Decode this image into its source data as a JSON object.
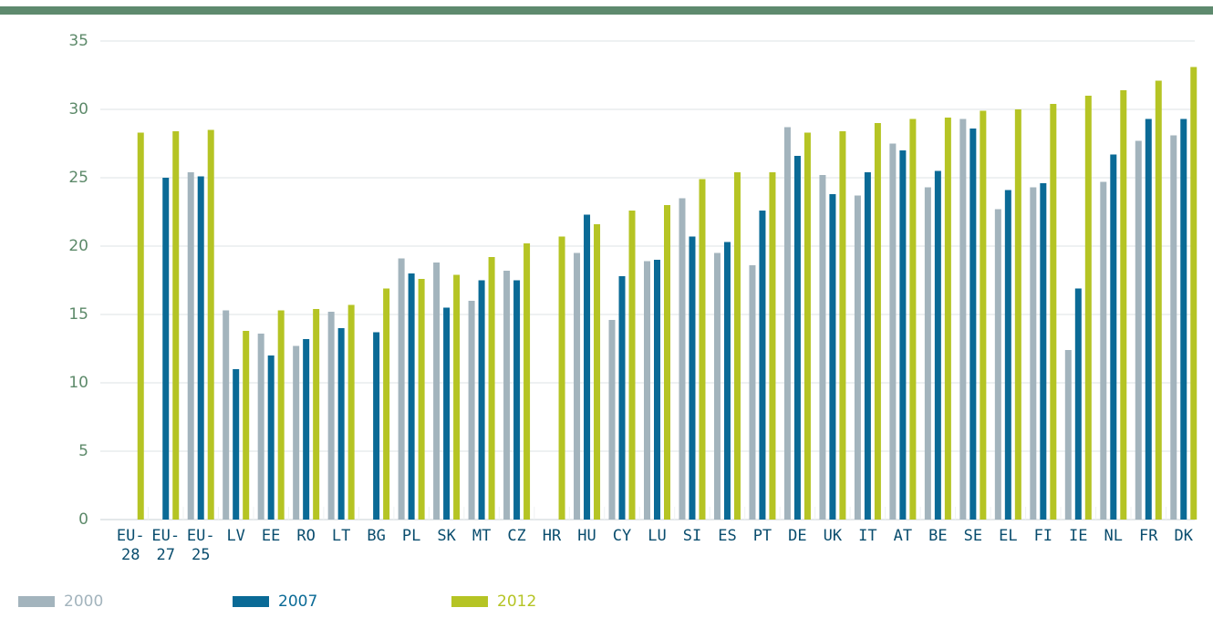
{
  "chart_data": {
    "type": "bar",
    "categories": [
      "EU-28",
      "EU-27",
      "EU-25",
      "LV",
      "EE",
      "RO",
      "LT",
      "BG",
      "PL",
      "SK",
      "MT",
      "CZ",
      "HR",
      "HU",
      "CY",
      "LU",
      "SI",
      "ES",
      "PT",
      "DE",
      "UK",
      "IT",
      "AT",
      "BE",
      "SE",
      "EL",
      "FI",
      "IE",
      "NL",
      "FR",
      "DK"
    ],
    "series": [
      {
        "name": "2000",
        "color": "#a3b4bd",
        "values": [
          null,
          null,
          25.4,
          15.3,
          13.6,
          12.7,
          15.2,
          null,
          19.1,
          18.8,
          16.0,
          18.2,
          null,
          19.5,
          14.6,
          18.9,
          23.5,
          19.5,
          18.6,
          28.7,
          25.2,
          23.7,
          27.5,
          24.3,
          29.3,
          22.7,
          24.3,
          12.4,
          24.7,
          27.7,
          28.1
        ]
      },
      {
        "name": "2007",
        "color": "#0a6a96",
        "values": [
          null,
          25.0,
          25.1,
          11.0,
          12.0,
          13.2,
          14.0,
          13.7,
          18.0,
          15.5,
          17.5,
          17.5,
          null,
          22.3,
          17.8,
          19.0,
          20.7,
          20.3,
          22.6,
          26.6,
          23.8,
          25.4,
          27.0,
          25.5,
          28.6,
          24.1,
          24.6,
          16.9,
          26.7,
          29.3,
          29.3
        ]
      },
      {
        "name": "2012",
        "color": "#b5c424",
        "values": [
          28.3,
          28.4,
          28.5,
          13.8,
          15.3,
          15.4,
          15.7,
          16.9,
          17.6,
          17.9,
          19.2,
          20.2,
          20.7,
          21.6,
          22.6,
          23.0,
          24.9,
          25.4,
          25.4,
          28.3,
          28.4,
          29.0,
          29.3,
          29.4,
          29.9,
          30.0,
          30.4,
          31.0,
          31.4,
          32.1,
          33.1
        ]
      }
    ],
    "ylim": [
      0,
      35
    ],
    "yticks": [
      0,
      5,
      10,
      15,
      20,
      25,
      30,
      35
    ],
    "grid": true
  }
}
